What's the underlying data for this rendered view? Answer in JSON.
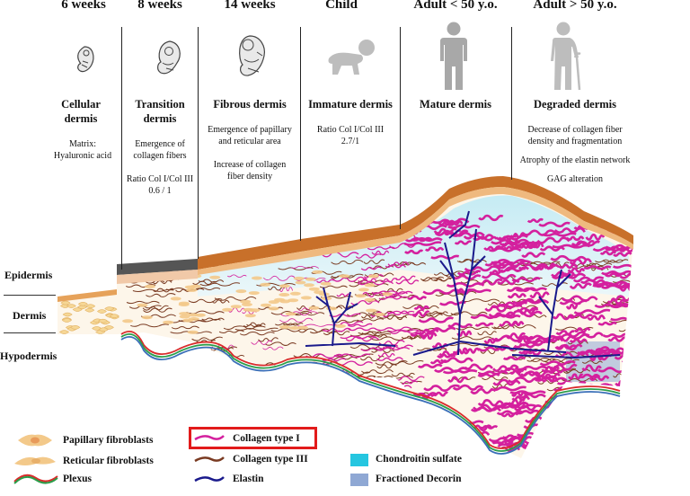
{
  "stages": [
    {
      "title": "6 weeks",
      "name": "Cellular dermis",
      "desc": [
        "Matrix:",
        "Hyaluronic acid"
      ],
      "icon": "embryo-icon"
    },
    {
      "title": "8 weeks",
      "name": "Transition dermis",
      "desc": [
        "Emergence of",
        "collagen fibers",
        "",
        "Ratio Col I/Col III",
        "0.6 / 1"
      ],
      "icon": "fetus-icon"
    },
    {
      "title": "14 weeks",
      "name": "Fibrous dermis",
      "desc": [
        "Emergence of papillary",
        "and reticular area",
        "",
        "Increase of collagen",
        "fiber density"
      ],
      "icon": "fetus-large-icon"
    },
    {
      "title": "Child",
      "name": "Immature dermis",
      "desc": [
        "Ratio Col I/Col III",
        "2.7/1"
      ],
      "icon": "crawling-child-icon"
    },
    {
      "title": "Adult < 50 y.o.",
      "name": "Mature dermis",
      "desc": [],
      "icon": "adult-icon"
    },
    {
      "title": "Adult > 50 y.o.",
      "name": "Degraded dermis",
      "desc": [
        "Decrease of collagen fiber",
        "density and fragmentation",
        "",
        "Atrophy of the elastin network",
        "",
        "GAG alteration"
      ],
      "icon": "elderly-with-cane-icon"
    }
  ],
  "layers": {
    "epidermis": "Epidermis",
    "dermis": "Dermis",
    "hypodermis": "Hypodermis"
  },
  "legend": {
    "papillary": "Papillary fibroblasts",
    "reticular": "Reticular fibroblasts",
    "plexus": "Plexus",
    "collagen1": "Collagen type I",
    "collagen3": "Collagen type III",
    "elastin": "Elastin",
    "chondroitin": "Chondroitin sulfate",
    "decorin": "Fractioned Decorin"
  },
  "colors": {
    "collagen1": "#d4209e",
    "collagen3": "#7a3b22",
    "elastin": "#1a1a8c",
    "chondroitin": "#25c6e0",
    "decorin": "#8fa8d4",
    "epidermis": "#c8702a",
    "fibroblast": "#f3c98a",
    "plexus_red": "#d92b2b",
    "plexus_green": "#2a9d4a",
    "plexus_blue": "#3a6fb8",
    "highlight": "#e21b1b"
  }
}
